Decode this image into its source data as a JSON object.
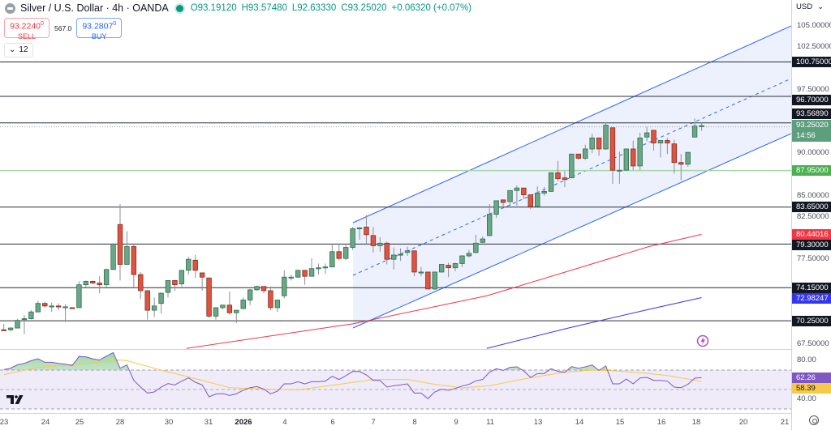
{
  "header": {
    "symbol_title": "Silver / U.S. Dollar · 4h · OANDA",
    "open": "O93.19120",
    "high": "H93.57480",
    "low": "L92.63330",
    "close": "C93.25020",
    "change": "+0.06320 (+0.07%)"
  },
  "trade": {
    "sell_price": "93.2240",
    "sell_sup": "0",
    "sell_label": "SELL",
    "spread": "567.0",
    "buy_price": "93.2807",
    "buy_sup": "0",
    "buy_label": "BUY"
  },
  "indicators_toggle": {
    "count": "12"
  },
  "price_axis": {
    "currency": "USD",
    "ticks": [
      {
        "value": 105,
        "label": "105.00000"
      },
      {
        "value": 102.5,
        "label": "102.50000"
      },
      {
        "value": 97.5,
        "label": "97.50000"
      },
      {
        "value": 90,
        "label": "90.00000"
      },
      {
        "value": 85,
        "label": "85.00000"
      },
      {
        "value": 82.5,
        "label": "82.50000"
      },
      {
        "value": 77.5,
        "label": "77.50000"
      },
      {
        "value": 67.5,
        "label": "67.50000"
      }
    ],
    "rsi_ticks": [
      {
        "value": 80,
        "label": "80.00"
      },
      {
        "value": 40,
        "label": "40.00"
      }
    ]
  },
  "colors": {
    "up": "#6aa786",
    "up_border": "#2f6e4b",
    "down": "#dd5440",
    "down_border": "#8b2a1e",
    "level_line": "#2a2e39",
    "support_line": "#a5d6a7",
    "channel": "#2962ff",
    "channel_fill": "#edf1fd",
    "ma_red": "#f23645",
    "ma_blue": "#3535f0",
    "rsi": "#7e57c2",
    "rsi_ma": "#f7c948",
    "rsi_band": "#efebf8"
  },
  "chart_data": [
    {
      "type": "candlestick",
      "symbol": "Silver / U.S. Dollar",
      "interval": "4h",
      "ylim": [
        66.5,
        107
      ],
      "grid": false,
      "x_tick_labels": [
        "23",
        "24",
        "25",
        "28",
        "30",
        "31",
        "2026",
        "4",
        "6",
        "7",
        "8",
        "9",
        "11",
        "13",
        "14",
        "15",
        "16",
        "18",
        "20",
        "21"
      ],
      "ohlc": [
        [
          69.2,
          69.9,
          69.1,
          69.15
        ],
        [
          69.2,
          69.5,
          69.0,
          69.4
        ],
        [
          69.4,
          70.5,
          69.4,
          70.3
        ],
        [
          70.4,
          70.9,
          68.7,
          70.5
        ],
        [
          70.5,
          71.5,
          70.4,
          71.3
        ],
        [
          71.3,
          72.6,
          71.3,
          72.3
        ],
        [
          72.3,
          72.5,
          71.8,
          72.0
        ],
        [
          72.0,
          72.4,
          71.3,
          72.0
        ],
        [
          72.0,
          72.3,
          71.5,
          71.9
        ],
        [
          71.9,
          72.2,
          70.1,
          71.9
        ],
        [
          71.8,
          71.8,
          71.7,
          71.7
        ],
        [
          71.8,
          74.9,
          71.8,
          74.5
        ],
        [
          74.5,
          75.0,
          74.2,
          74.9
        ],
        [
          74.9,
          75.0,
          74.6,
          74.7
        ],
        [
          74.7,
          75.5,
          73.5,
          74.5
        ],
        [
          74.5,
          76.4,
          74.2,
          76.3
        ],
        [
          76.3,
          79.4,
          76.3,
          79.3
        ],
        [
          81.6,
          84.0,
          75.0,
          76.9
        ],
        [
          76.9,
          80.8,
          76.9,
          79.0
        ],
        [
          79.0,
          79.3,
          74.2,
          75.7
        ],
        [
          75.7,
          76.0,
          72.8,
          73.8
        ],
        [
          73.8,
          73.8,
          70.4,
          71.5
        ],
        [
          71.5,
          73.0,
          70.7,
          72.0
        ],
        [
          72.3,
          73.6,
          71.1,
          73.5
        ],
        [
          73.6,
          75.0,
          73.0,
          75.0
        ],
        [
          75.0,
          75.0,
          73.8,
          74.5
        ],
        [
          74.6,
          76.2,
          74.3,
          76.2
        ],
        [
          76.2,
          77.8,
          75.7,
          77.5
        ],
        [
          77.4,
          78.0,
          75.3,
          76.2
        ],
        [
          75.9,
          75.9,
          73.8,
          75.4
        ],
        [
          75.3,
          75.3,
          70.6,
          70.8
        ],
        [
          70.8,
          71.8,
          70.4,
          71.8
        ],
        [
          71.8,
          72.1,
          71.6,
          72.1
        ],
        [
          72.1,
          73.7,
          71.0,
          71.2
        ],
        [
          71.2,
          71.5,
          70.0,
          71.5
        ],
        [
          71.7,
          73.0,
          71.6,
          72.7
        ],
        [
          72.7,
          74.0,
          72.1,
          73.9
        ],
        [
          73.9,
          74.4,
          73.8,
          74.3
        ],
        [
          74.3,
          74.3,
          73.5,
          73.8
        ],
        [
          73.8,
          74.3,
          71.5,
          71.8
        ],
        [
          71.8,
          72.7,
          71.3,
          72.7
        ],
        [
          73.2,
          76.2,
          72.9,
          75.4
        ],
        [
          75.4,
          75.7,
          75.0,
          75.4
        ],
        [
          75.4,
          76.2,
          75.3,
          76.2
        ],
        [
          76.2,
          76.2,
          74.5,
          75.5
        ],
        [
          75.5,
          77.6,
          75.5,
          76.4
        ],
        [
          76.4,
          77.0,
          75.7,
          76.5
        ],
        [
          76.6,
          77.0,
          75.8,
          76.6
        ],
        [
          76.6,
          79.3,
          76.6,
          78.4
        ],
        [
          78.4,
          79.3,
          77.4,
          77.6
        ],
        [
          77.6,
          79.3,
          77.4,
          78.9
        ],
        [
          78.9,
          81.3,
          78.6,
          81.1
        ],
        [
          81.2,
          81.3,
          79.8,
          81.2
        ],
        [
          81.3,
          82.7,
          79.3,
          80.4
        ],
        [
          80.3,
          81.3,
          78.3,
          79.1
        ],
        [
          79.1,
          80.1,
          78.4,
          79.4
        ],
        [
          79.4,
          79.6,
          76.9,
          77.5
        ],
        [
          77.5,
          78.9,
          76.3,
          78.0
        ],
        [
          78.1,
          78.8,
          77.3,
          78.1
        ],
        [
          78.3,
          79.0,
          77.9,
          78.5
        ],
        [
          78.5,
          78.5,
          75.5,
          76.0
        ],
        [
          76.0,
          76.6,
          75.5,
          76.0
        ],
        [
          76.0,
          76.0,
          74.0,
          74.0
        ],
        [
          74.0,
          76.0,
          73.9,
          76.0
        ],
        [
          76.0,
          76.9,
          75.9,
          76.9
        ],
        [
          76.8,
          77.1,
          75.4,
          76.5
        ],
        [
          76.5,
          77.1,
          76.1,
          77.0
        ],
        [
          77.0,
          78.0,
          76.6,
          77.9
        ],
        [
          77.9,
          78.6,
          77.7,
          78.2
        ],
        [
          78.3,
          80.4,
          78.2,
          79.4
        ],
        [
          79.5,
          80.2,
          79.4,
          79.9
        ],
        [
          80.3,
          84.0,
          80.2,
          82.8
        ],
        [
          82.8,
          84.4,
          82.4,
          84.4
        ],
        [
          84.5,
          84.5,
          83.6,
          84.2
        ],
        [
          84.3,
          85.6,
          83.6,
          85.6
        ],
        [
          85.6,
          86.2,
          83.8,
          85.9
        ],
        [
          85.9,
          85.9,
          84.6,
          85.1
        ],
        [
          85.1,
          85.1,
          83.4,
          83.7
        ],
        [
          83.7,
          86.1,
          83.7,
          85.3
        ],
        [
          85.3,
          86.0,
          85.0,
          85.5
        ],
        [
          85.5,
          87.7,
          85.5,
          87.7
        ],
        [
          87.7,
          89.1,
          86.7,
          87.0
        ],
        [
          87.1,
          87.9,
          86.0,
          86.9
        ],
        [
          87.1,
          89.9,
          87.1,
          89.9
        ],
        [
          89.9,
          89.9,
          89.2,
          89.4
        ],
        [
          89.4,
          91.0,
          89.2,
          90.5
        ],
        [
          90.5,
          92.3,
          90.0,
          91.8
        ],
        [
          91.8,
          91.8,
          89.7,
          90.5
        ],
        [
          90.5,
          93.6,
          90.4,
          93.3
        ],
        [
          93.0,
          93.0,
          86.4,
          88.0
        ],
        [
          88.0,
          90.2,
          86.4,
          88.0
        ],
        [
          88.0,
          90.5,
          88.0,
          90.5
        ],
        [
          90.5,
          91.5,
          88.0,
          88.5
        ],
        [
          88.5,
          92.4,
          88.0,
          91.8
        ],
        [
          91.9,
          93.1,
          91.4,
          92.4
        ],
        [
          92.7,
          92.7,
          90.3,
          91.2
        ],
        [
          91.2,
          91.5,
          89.5,
          91.5
        ],
        [
          91.5,
          91.8,
          89.9,
          91.2
        ],
        [
          91.1,
          91.6,
          87.6,
          88.9
        ],
        [
          88.9,
          89.9,
          86.8,
          88.7
        ],
        [
          88.7,
          90.1,
          88.4,
          90.1
        ],
        [
          91.9,
          94.1,
          91.9,
          93.2
        ],
        [
          93.1912,
          93.5748,
          92.6333,
          93.2502
        ]
      ],
      "levels": [
        {
          "value": 100.75,
          "label": "100.75000",
          "style": "solid",
          "tag": "dark"
        },
        {
          "value": 96.7,
          "label": "96.70000",
          "style": "solid",
          "tag": "dark"
        },
        {
          "value": 93.5689,
          "label": "93.56890",
          "style": "solid",
          "tag": "dark"
        },
        {
          "value": 87.95,
          "label": "87.95000",
          "style": "support",
          "tag": "green"
        },
        {
          "value": 83.65,
          "label": "83.65000",
          "style": "solid",
          "tag": "dark"
        },
        {
          "value": 79.3,
          "label": "79.30000",
          "style": "solid",
          "tag": "dark"
        },
        {
          "value": 74.15,
          "label": "74.15000",
          "style": "solid",
          "tag": "dark"
        },
        {
          "value": 70.25,
          "label": "70.25000",
          "style": "solid",
          "tag": "dark"
        }
      ],
      "last_price": {
        "value": 93.2502,
        "label": "93.25020",
        "countdown": "14:56"
      },
      "moving_averages": [
        {
          "color": "red",
          "last_label": "80.44016",
          "last": 80.44016,
          "points": [
            [
              26.7,
              67.0
            ],
            [
              51,
              69.9
            ],
            [
              70.6,
              73.2
            ],
            [
              82.5,
              76.1
            ],
            [
              94.3,
              79.0
            ],
            [
              102,
              80.44016
            ]
          ]
        },
        {
          "color": "blue",
          "last_label": "72.98247",
          "last": 72.98247,
          "points": [
            [
              70.6,
              67.0
            ],
            [
              82.5,
              69.4
            ],
            [
              94.3,
              71.6
            ],
            [
              102,
              72.98247
            ]
          ]
        }
      ]
    },
    {
      "type": "line",
      "indicator": "RSI",
      "ylim": [
        23,
        92
      ],
      "bands": [
        70,
        50,
        30
      ],
      "rsi": [
        70.5,
        71.9,
        75.5,
        76.9,
        79.7,
        81.6,
        78,
        78,
        76.9,
        76,
        74.7,
        83.9,
        83.6,
        81.6,
        80.3,
        84.4,
        88,
        71.9,
        75.3,
        59.4,
        52.5,
        46.4,
        47.5,
        52.5,
        56.1,
        54.7,
        58.6,
        62,
        57.5,
        54.7,
        42.5,
        45.3,
        45.8,
        43.9,
        45.6,
        49.2,
        51.9,
        53,
        50.5,
        45.6,
        48.3,
        55.8,
        55.8,
        58,
        55.8,
        58,
        58,
        58.6,
        63.6,
        60.3,
        64.2,
        68.6,
        68.6,
        65,
        59.4,
        59.4,
        52.5,
        53.9,
        54.7,
        55.8,
        46.4,
        46.4,
        40.6,
        47.5,
        50.3,
        49.2,
        51.1,
        53.6,
        55.3,
        58.9,
        60.3,
        67.8,
        71.4,
        69.7,
        72.8,
        73.3,
        69.2,
        62.5,
        66.4,
        66.4,
        71.4,
        68.6,
        67.8,
        73.6,
        71.9,
        73.3,
        75.3,
        69.7,
        74.2,
        55.8,
        55.8,
        60.8,
        55.8,
        61.9,
        62.5,
        59.4,
        59.4,
        58.6,
        52.5,
        51.9,
        55.3,
        61.7,
        62.26
      ],
      "rsi_ma": [
        [
          0,
          65.3
        ],
        [
          5,
          72.8
        ],
        [
          11,
          76.1
        ],
        [
          17,
          80.3
        ],
        [
          18,
          79.7
        ],
        [
          23,
          70
        ],
        [
          29,
          59.4
        ],
        [
          33,
          51.9
        ],
        [
          39,
          50.3
        ],
        [
          43,
          49.7
        ],
        [
          49,
          55.3
        ],
        [
          54,
          60.3
        ],
        [
          59,
          60.3
        ],
        [
          63,
          55.3
        ],
        [
          67,
          51.7
        ],
        [
          71,
          53.9
        ],
        [
          76,
          60.8
        ],
        [
          82,
          67.8
        ],
        [
          86,
          70
        ],
        [
          89,
          69.4
        ],
        [
          94,
          66.7
        ],
        [
          97,
          64.4
        ],
        [
          102,
          58.39
        ]
      ],
      "rsi_last_label": "62.26",
      "rsi_ma_last_label": "58.39"
    }
  ]
}
